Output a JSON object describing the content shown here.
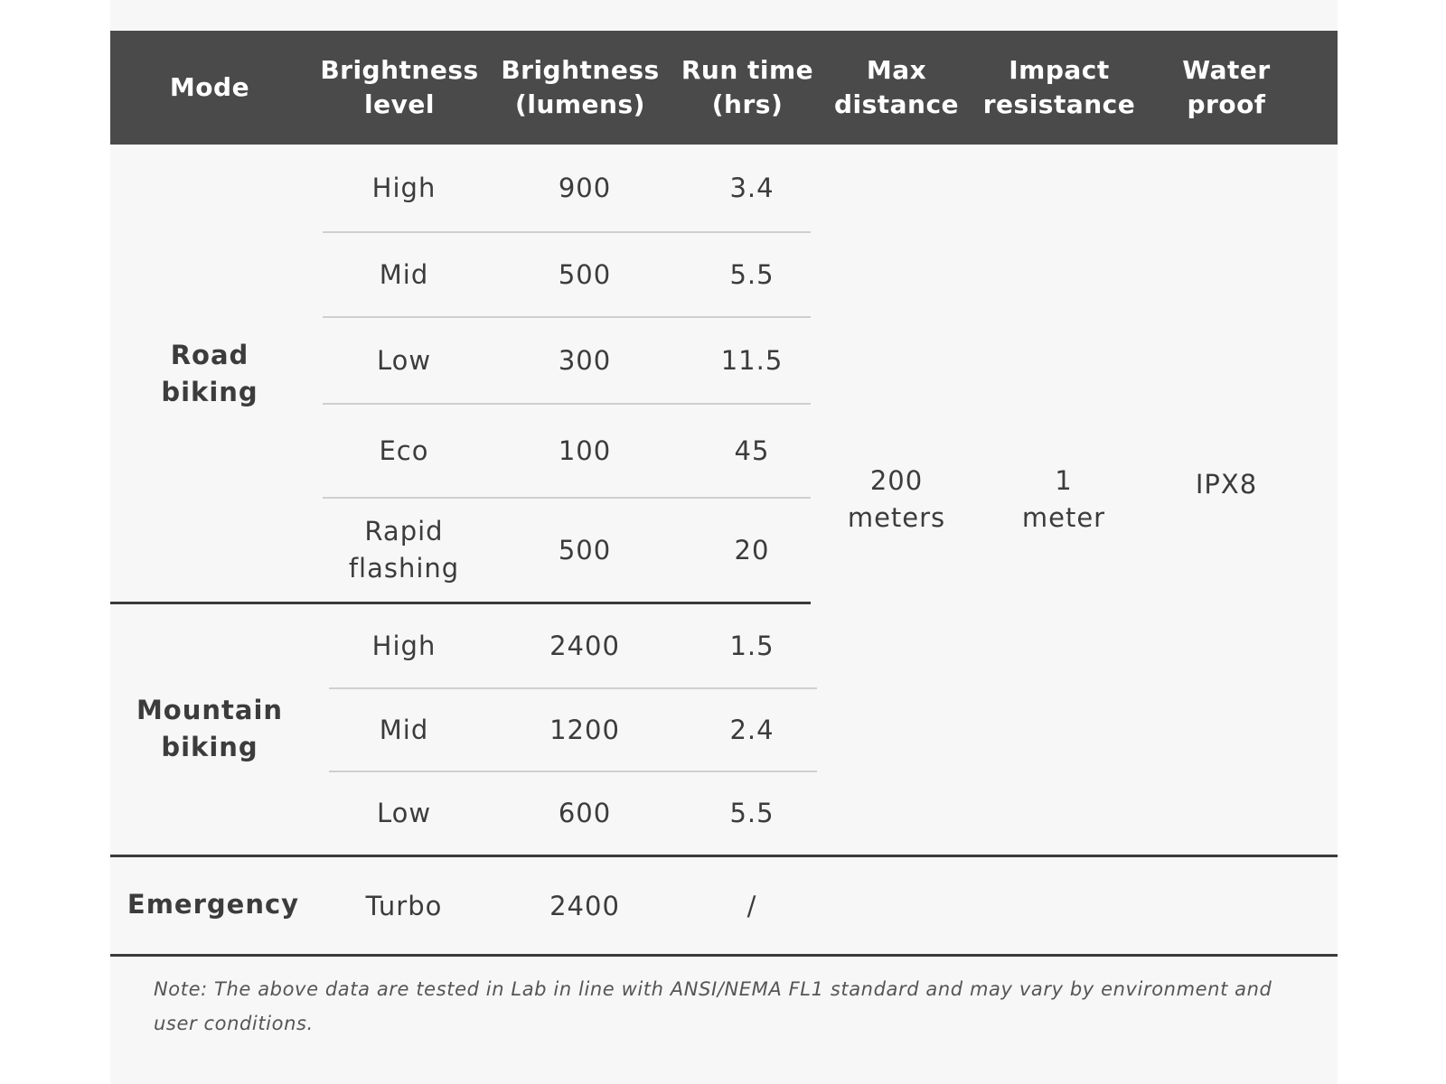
{
  "table": {
    "headers": [
      "Mode",
      "Brightness\nlevel",
      "Brightness\n(lumens)",
      "Run time\n(hrs)",
      "Max\ndistance",
      "Impact\nresistance",
      "Water\nproof"
    ],
    "groups": [
      {
        "mode": "Road\nbiking",
        "rows": [
          {
            "level": "High",
            "lumens": "900",
            "runtime": "3.4"
          },
          {
            "level": "Mid",
            "lumens": "500",
            "runtime": "5.5"
          },
          {
            "level": "Low",
            "lumens": "300",
            "runtime": "11.5"
          },
          {
            "level": "Eco",
            "lumens": "100",
            "runtime": "45"
          },
          {
            "level": "Rapid\nflashing",
            "lumens": "500",
            "runtime": "20"
          }
        ]
      },
      {
        "mode": "Mountain\nbiking",
        "rows": [
          {
            "level": "High",
            "lumens": "2400",
            "runtime": "1.5"
          },
          {
            "level": "Mid",
            "lumens": "1200",
            "runtime": "2.4"
          },
          {
            "level": "Low",
            "lumens": "600",
            "runtime": "5.5"
          }
        ]
      },
      {
        "mode": "Emergency",
        "rows": [
          {
            "level": "Turbo",
            "lumens": "2400",
            "runtime": "/"
          }
        ]
      }
    ],
    "max_distance": "200\nmeters",
    "impact_resistance": "1\nmeter",
    "waterproof": "IPX8"
  },
  "note": "Note: The above data are tested in Lab in line with ANSI/NEMA FL1 standard and may vary by environment and user conditions."
}
